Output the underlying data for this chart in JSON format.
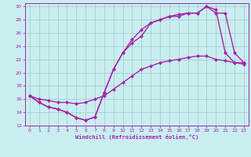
{
  "xlabel": "Windchill (Refroidissement éolien,°C)",
  "bg_color": "#c8eef0",
  "grid_color": "#a0c8c8",
  "line_color": "#aa22aa",
  "markersize": 2.5,
  "linewidth": 1.0,
  "xlim": [
    -0.5,
    23.5
  ],
  "ylim": [
    12,
    30.5
  ],
  "xticks": [
    0,
    1,
    2,
    3,
    4,
    5,
    6,
    7,
    8,
    9,
    10,
    11,
    12,
    13,
    14,
    15,
    16,
    17,
    18,
    19,
    20,
    21,
    22,
    23
  ],
  "yticks": [
    12,
    14,
    16,
    18,
    20,
    22,
    24,
    26,
    28,
    30
  ],
  "curve1_x": [
    0,
    1,
    2,
    3,
    4,
    5,
    6,
    7,
    8,
    9,
    10,
    11,
    12,
    13,
    14,
    15,
    16,
    17,
    18,
    19,
    20,
    21,
    22,
    23
  ],
  "curve1_y": [
    16.5,
    15.5,
    14.8,
    14.5,
    14.0,
    13.2,
    12.8,
    13.3,
    17.0,
    20.5,
    23.0,
    24.5,
    25.5,
    27.5,
    28.0,
    28.5,
    28.5,
    29.0,
    29.0,
    30.0,
    29.5,
    23.0,
    21.5,
    21.5
  ],
  "curve2_x": [
    0,
    1,
    2,
    3,
    4,
    5,
    6,
    7,
    8,
    9,
    10,
    11,
    12,
    13,
    14,
    15,
    16,
    17,
    18,
    19,
    20,
    21,
    22,
    23
  ],
  "curve2_y": [
    16.5,
    15.5,
    14.8,
    14.5,
    14.0,
    13.2,
    12.8,
    13.3,
    17.0,
    20.5,
    23.0,
    25.0,
    26.5,
    27.5,
    28.0,
    28.5,
    28.8,
    29.0,
    29.0,
    30.0,
    29.0,
    29.0,
    23.0,
    21.5
  ],
  "curve3_x": [
    0,
    1,
    2,
    3,
    4,
    5,
    6,
    7,
    8,
    9,
    10,
    11,
    12,
    13,
    14,
    15,
    16,
    17,
    18,
    19,
    20,
    21,
    22,
    23
  ],
  "curve3_y": [
    16.5,
    16.0,
    15.8,
    15.5,
    15.5,
    15.3,
    15.5,
    16.0,
    16.5,
    17.5,
    18.5,
    19.5,
    20.5,
    21.0,
    21.5,
    21.8,
    22.0,
    22.3,
    22.5,
    22.5,
    22.0,
    21.8,
    21.5,
    21.3
  ]
}
